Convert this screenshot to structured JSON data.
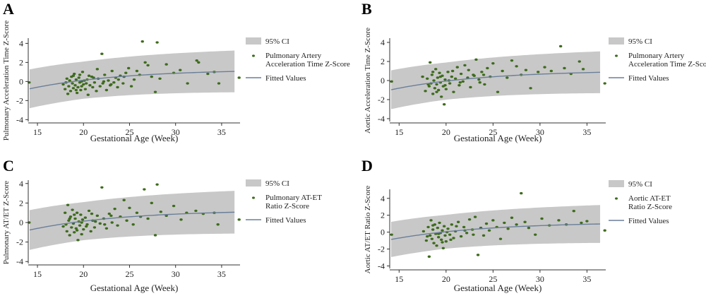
{
  "colors": {
    "ci_band": "#c8c8c8",
    "fitted_line": "#6a7f99",
    "points": "#3e6b1c",
    "axis": "#333333"
  },
  "chart_data": [
    {
      "panel": "A",
      "type": "scatter",
      "xlabel": "Gestational Age (Week)",
      "ylabel": "Pulmonary Acceleration Time Z-Score",
      "xlim": [
        14,
        37
      ],
      "ylim": [
        -4.2,
        4.4
      ],
      "xticks": [
        15,
        20,
        25,
        30,
        35
      ],
      "yticks": [
        -4,
        -2,
        0,
        2,
        4
      ],
      "legend": {
        "placement": "right",
        "entries": [
          {
            "kind": "band",
            "label": [
              "95% CI"
            ]
          },
          {
            "kind": "point",
            "label": [
              "Pulmonary Artery",
              "Acceleration Time Z-Score"
            ]
          },
          {
            "kind": "line",
            "label": [
              "Fitted Values"
            ]
          }
        ]
      },
      "fit_center": [
        0.04,
        0.05,
        -0.8,
        -5.2
      ],
      "ci_half_width": 1.95,
      "points": [
        [
          14.1,
          -0.1
        ],
        [
          17.8,
          -0.3
        ],
        [
          18.0,
          -0.8
        ],
        [
          18.2,
          0.3
        ],
        [
          18.4,
          -0.5
        ],
        [
          18.5,
          0.1
        ],
        [
          18.6,
          -1.0
        ],
        [
          18.7,
          0.5
        ],
        [
          18.8,
          -0.2
        ],
        [
          18.9,
          -0.7
        ],
        [
          19.0,
          0.8
        ],
        [
          19.1,
          -0.4
        ],
        [
          19.2,
          0.2
        ],
        [
          19.3,
          -1.2
        ],
        [
          19.4,
          -0.6
        ],
        [
          19.5,
          0.4
        ],
        [
          19.6,
          -0.1
        ],
        [
          19.7,
          -0.9
        ],
        [
          19.8,
          0.0
        ],
        [
          19.9,
          1.0
        ],
        [
          20.0,
          -0.3
        ],
        [
          20.2,
          -0.8
        ],
        [
          20.4,
          0.2
        ],
        [
          20.5,
          -1.4
        ],
        [
          20.7,
          -0.4
        ],
        [
          20.9,
          0.5
        ],
        [
          21.0,
          -0.6
        ],
        [
          21.2,
          -0.1
        ],
        [
          21.4,
          -1.0
        ],
        [
          21.6,
          0.3
        ],
        [
          21.8,
          -0.5
        ],
        [
          22.0,
          2.9
        ],
        [
          22.1,
          -0.2
        ],
        [
          22.3,
          0.7
        ],
        [
          22.5,
          -0.9
        ],
        [
          22.7,
          0.1
        ],
        [
          22.9,
          -0.4
        ],
        [
          23.1,
          1.1
        ],
        [
          23.3,
          -0.1
        ],
        [
          23.5,
          0.4
        ],
        [
          23.7,
          -0.6
        ],
        [
          24.0,
          0.6
        ],
        [
          24.3,
          -0.2
        ],
        [
          24.6,
          0.9
        ],
        [
          24.9,
          1.4
        ],
        [
          25.2,
          -0.5
        ],
        [
          25.5,
          0.2
        ],
        [
          25.8,
          1.1
        ],
        [
          26.1,
          0.7
        ],
        [
          26.4,
          4.2
        ],
        [
          26.7,
          2.0
        ],
        [
          27.0,
          1.7
        ],
        [
          27.4,
          0.5
        ],
        [
          27.8,
          -1.1
        ],
        [
          28.0,
          4.1
        ],
        [
          28.3,
          0.3
        ],
        [
          29.0,
          1.8
        ],
        [
          29.8,
          0.9
        ],
        [
          30.5,
          1.2
        ],
        [
          31.3,
          -0.2
        ],
        [
          32.3,
          2.2
        ],
        [
          32.5,
          2.0
        ],
        [
          33.5,
          0.8
        ],
        [
          34.2,
          1.0
        ],
        [
          34.7,
          -0.2
        ],
        [
          36.9,
          0.4
        ],
        [
          18.1,
          -0.1
        ],
        [
          18.3,
          -1.3
        ],
        [
          18.9,
          0.6
        ],
        [
          19.2,
          -0.9
        ],
        [
          19.6,
          0.7
        ],
        [
          19.8,
          -0.5
        ],
        [
          20.1,
          0.1
        ],
        [
          20.3,
          -0.2
        ],
        [
          20.6,
          0.6
        ],
        [
          21.1,
          0.4
        ],
        [
          21.5,
          1.3
        ],
        [
          22.2,
          0.0
        ],
        [
          23.0,
          -0.3
        ],
        [
          23.8,
          0.2
        ],
        [
          24.4,
          0.5
        ]
      ]
    },
    {
      "panel": "B",
      "type": "scatter",
      "xlabel": "Gestational Age (Week)",
      "ylabel": "Aortic Acceleration Time Z-Score",
      "xlim": [
        14,
        37
      ],
      "ylim": [
        -4.3,
        4.3
      ],
      "xticks": [
        15,
        20,
        25,
        30,
        35
      ],
      "yticks": [
        -4,
        -2,
        0,
        2,
        4
      ],
      "legend": {
        "placement": "right",
        "entries": [
          {
            "kind": "band",
            "label": [
              "95% CI"
            ]
          },
          {
            "kind": "point",
            "label": [
              "Pulmonary Artery",
              "Acceleration Time Z-Score"
            ]
          },
          {
            "kind": "line",
            "label": [
              "Fitted Values"
            ]
          }
        ]
      },
      "fit_center": [
        0.045,
        0.05,
        -1.0,
        -5.5
      ],
      "ci_half_width": 1.95,
      "points": [
        [
          14.2,
          -0.1
        ],
        [
          17.5,
          0.4
        ],
        [
          17.8,
          -1.1
        ],
        [
          18.0,
          0.2
        ],
        [
          18.2,
          -0.6
        ],
        [
          18.3,
          1.9
        ],
        [
          18.4,
          -0.3
        ],
        [
          18.5,
          0.6
        ],
        [
          18.6,
          -1.4
        ],
        [
          18.7,
          0.0
        ],
        [
          18.8,
          -0.8
        ],
        [
          18.9,
          1.2
        ],
        [
          19.0,
          -0.4
        ],
        [
          19.1,
          0.3
        ],
        [
          19.2,
          -1.0
        ],
        [
          19.3,
          0.8
        ],
        [
          19.4,
          -0.2
        ],
        [
          19.5,
          -1.7
        ],
        [
          19.6,
          0.5
        ],
        [
          19.7,
          -0.6
        ],
        [
          19.8,
          -2.5
        ],
        [
          19.9,
          0.1
        ],
        [
          20.0,
          -0.9
        ],
        [
          20.2,
          0.9
        ],
        [
          20.4,
          -0.3
        ],
        [
          20.6,
          0.4
        ],
        [
          20.8,
          -1.2
        ],
        [
          21.0,
          0.2
        ],
        [
          21.2,
          1.4
        ],
        [
          21.4,
          -0.5
        ],
        [
          21.6,
          0.7
        ],
        [
          21.8,
          -0.1
        ],
        [
          22.0,
          1.6
        ],
        [
          22.3,
          0.3
        ],
        [
          22.6,
          -0.7
        ],
        [
          22.9,
          0.6
        ],
        [
          23.2,
          2.2
        ],
        [
          23.5,
          0.1
        ],
        [
          23.8,
          0.9
        ],
        [
          24.1,
          -0.4
        ],
        [
          24.4,
          1.3
        ],
        [
          24.7,
          0.4
        ],
        [
          25.0,
          1.8
        ],
        [
          25.5,
          -1.2
        ],
        [
          26.0,
          1.0
        ],
        [
          26.5,
          0.3
        ],
        [
          27.0,
          2.1
        ],
        [
          27.5,
          1.5
        ],
        [
          28.0,
          0.6
        ],
        [
          28.5,
          1.1
        ],
        [
          29.0,
          -0.8
        ],
        [
          29.8,
          0.9
        ],
        [
          30.5,
          1.4
        ],
        [
          31.2,
          1.0
        ],
        [
          32.2,
          3.6
        ],
        [
          32.6,
          1.3
        ],
        [
          33.3,
          0.7
        ],
        [
          34.2,
          2.0
        ],
        [
          34.6,
          1.2
        ],
        [
          36.9,
          -0.3
        ],
        [
          18.1,
          -0.4
        ],
        [
          18.6,
          0.9
        ],
        [
          19.0,
          -1.2
        ],
        [
          19.4,
          0.4
        ],
        [
          19.9,
          -0.5
        ],
        [
          20.3,
          0.0
        ],
        [
          20.7,
          1.0
        ],
        [
          21.5,
          -0.2
        ],
        [
          22.4,
          1.1
        ],
        [
          23.0,
          0.5
        ],
        [
          23.6,
          -0.2
        ],
        [
          24.0,
          0.6
        ]
      ]
    },
    {
      "panel": "C",
      "type": "scatter",
      "xlabel": "Gestational Age (Week)",
      "ylabel": "Pulmonary AT/ET Z-Score",
      "xlim": [
        14,
        37
      ],
      "ylim": [
        -4.2,
        4.2
      ],
      "xticks": [
        15,
        20,
        25,
        30,
        35
      ],
      "yticks": [
        -4,
        -2,
        0,
        2,
        4
      ],
      "legend": {
        "placement": "right",
        "entries": [
          {
            "kind": "band",
            "label": [
              "95% CI"
            ]
          },
          {
            "kind": "point",
            "label": [
              "Pulmonary AT-ET",
              "Ratio Z-Score"
            ]
          },
          {
            "kind": "line",
            "label": [
              "Fitted Values"
            ]
          }
        ]
      },
      "fit_center": [
        0.04,
        0.05,
        -0.8,
        -5.2
      ],
      "ci_half_width": 1.95,
      "points": [
        [
          14.1,
          0.0
        ],
        [
          17.8,
          -0.4
        ],
        [
          18.0,
          1.0
        ],
        [
          18.2,
          -0.9
        ],
        [
          18.3,
          1.8
        ],
        [
          18.4,
          0.2
        ],
        [
          18.5,
          -1.3
        ],
        [
          18.6,
          0.6
        ],
        [
          18.7,
          -0.5
        ],
        [
          18.8,
          1.3
        ],
        [
          18.9,
          -0.1
        ],
        [
          19.0,
          -1.0
        ],
        [
          19.1,
          0.4
        ],
        [
          19.2,
          -0.6
        ],
        [
          19.3,
          1.0
        ],
        [
          19.4,
          -1.8
        ],
        [
          19.5,
          0.1
        ],
        [
          19.6,
          -0.3
        ],
        [
          19.7,
          0.8
        ],
        [
          19.8,
          -1.2
        ],
        [
          19.9,
          0.3
        ],
        [
          20.0,
          -0.7
        ],
        [
          20.2,
          0.5
        ],
        [
          20.4,
          -0.2
        ],
        [
          20.6,
          1.2
        ],
        [
          20.8,
          -0.9
        ],
        [
          21.0,
          0.2
        ],
        [
          21.2,
          -0.5
        ],
        [
          21.5,
          0.7
        ],
        [
          21.8,
          -0.1
        ],
        [
          22.0,
          3.6
        ],
        [
          22.2,
          0.4
        ],
        [
          22.5,
          -0.6
        ],
        [
          22.8,
          0.9
        ],
        [
          23.1,
          0.0
        ],
        [
          23.4,
          1.4
        ],
        [
          23.7,
          -0.3
        ],
        [
          24.0,
          0.6
        ],
        [
          24.4,
          2.3
        ],
        [
          24.7,
          0.2
        ],
        [
          25.0,
          1.5
        ],
        [
          25.4,
          -0.2
        ],
        [
          25.8,
          1.0
        ],
        [
          26.2,
          0.6
        ],
        [
          26.6,
          3.4
        ],
        [
          27.0,
          0.4
        ],
        [
          27.4,
          2.0
        ],
        [
          27.8,
          -1.3
        ],
        [
          28.0,
          3.9
        ],
        [
          28.4,
          1.1
        ],
        [
          29.0,
          0.7
        ],
        [
          29.8,
          1.7
        ],
        [
          30.6,
          0.3
        ],
        [
          31.2,
          1.0
        ],
        [
          32.2,
          1.2
        ],
        [
          33.0,
          0.9
        ],
        [
          34.2,
          1.0
        ],
        [
          34.6,
          -0.2
        ],
        [
          36.9,
          0.3
        ],
        [
          18.1,
          -0.2
        ],
        [
          18.5,
          0.4
        ],
        [
          19.0,
          0.8
        ],
        [
          19.3,
          -0.8
        ],
        [
          19.8,
          0.0
        ],
        [
          20.3,
          -0.4
        ],
        [
          20.9,
          0.9
        ],
        [
          21.3,
          0.1
        ],
        [
          22.3,
          -0.2
        ],
        [
          23.0,
          0.7
        ]
      ]
    },
    {
      "panel": "D",
      "type": "scatter",
      "xlabel": "Gestational Age (Week)",
      "ylabel": "Aortic AT/ET Ratio Z-Score",
      "xlim": [
        14,
        37
      ],
      "ylim": [
        -4.3,
        4.9
      ],
      "xticks": [
        15,
        20,
        25,
        30,
        35
      ],
      "yticks": [
        -4,
        -2,
        0,
        2,
        4
      ],
      "legend": {
        "placement": "right",
        "entries": [
          {
            "kind": "band",
            "label": [
              "95% CI"
            ]
          },
          {
            "kind": "point",
            "label": [
              "Aortic AT-ET",
              "Ratio Z-Score"
            ]
          },
          {
            "kind": "line",
            "label": [
              "Fitted Values"
            ]
          }
        ]
      },
      "fit_center": [
        0.045,
        0.05,
        -0.9,
        -5.4
      ],
      "ci_half_width": 2.0,
      "points": [
        [
          14.2,
          -0.3
        ],
        [
          17.6,
          0.1
        ],
        [
          17.9,
          -1.0
        ],
        [
          18.1,
          0.6
        ],
        [
          18.2,
          -2.9
        ],
        [
          18.3,
          -0.4
        ],
        [
          18.4,
          1.4
        ],
        [
          18.5,
          -0.8
        ],
        [
          18.6,
          0.3
        ],
        [
          18.7,
          -1.3
        ],
        [
          18.8,
          0.9
        ],
        [
          18.9,
          -0.2
        ],
        [
          19.0,
          -1.6
        ],
        [
          19.1,
          0.5
        ],
        [
          19.2,
          -0.6
        ],
        [
          19.3,
          1.1
        ],
        [
          19.4,
          -0.1
        ],
        [
          19.5,
          -0.9
        ],
        [
          19.6,
          0.2
        ],
        [
          19.7,
          -1.9
        ],
        [
          19.8,
          0.7
        ],
        [
          19.9,
          -0.4
        ],
        [
          20.0,
          -1.1
        ],
        [
          20.2,
          0.4
        ],
        [
          20.4,
          -0.3
        ],
        [
          20.6,
          0.9
        ],
        [
          20.8,
          -0.7
        ],
        [
          21.0,
          0.1
        ],
        [
          21.3,
          1.2
        ],
        [
          21.6,
          -0.5
        ],
        [
          21.9,
          0.6
        ],
        [
          22.2,
          -0.1
        ],
        [
          22.5,
          1.5
        ],
        [
          22.8,
          0.3
        ],
        [
          23.1,
          1.8
        ],
        [
          23.4,
          -2.7
        ],
        [
          23.7,
          0.5
        ],
        [
          24.0,
          -0.4
        ],
        [
          24.3,
          1.0
        ],
        [
          24.6,
          0.2
        ],
        [
          25.0,
          1.4
        ],
        [
          25.4,
          0.6
        ],
        [
          25.8,
          -0.8
        ],
        [
          26.2,
          1.1
        ],
        [
          26.6,
          0.4
        ],
        [
          27.0,
          1.7
        ],
        [
          27.5,
          0.9
        ],
        [
          28.0,
          4.6
        ],
        [
          28.4,
          1.2
        ],
        [
          28.8,
          0.5
        ],
        [
          29.5,
          -0.3
        ],
        [
          30.2,
          1.6
        ],
        [
          31.0,
          0.8
        ],
        [
          32.0,
          1.4
        ],
        [
          32.8,
          0.9
        ],
        [
          33.6,
          2.5
        ],
        [
          34.4,
          1.1
        ],
        [
          35.0,
          1.3
        ],
        [
          36.9,
          0.2
        ],
        [
          18.0,
          -0.5
        ],
        [
          18.6,
          0.8
        ],
        [
          19.2,
          -0.2
        ],
        [
          19.6,
          -1.2
        ],
        [
          20.1,
          0.0
        ],
        [
          20.5,
          -0.9
        ],
        [
          21.1,
          0.7
        ],
        [
          22.0,
          0.2
        ],
        [
          22.9,
          -0.3
        ]
      ]
    }
  ]
}
